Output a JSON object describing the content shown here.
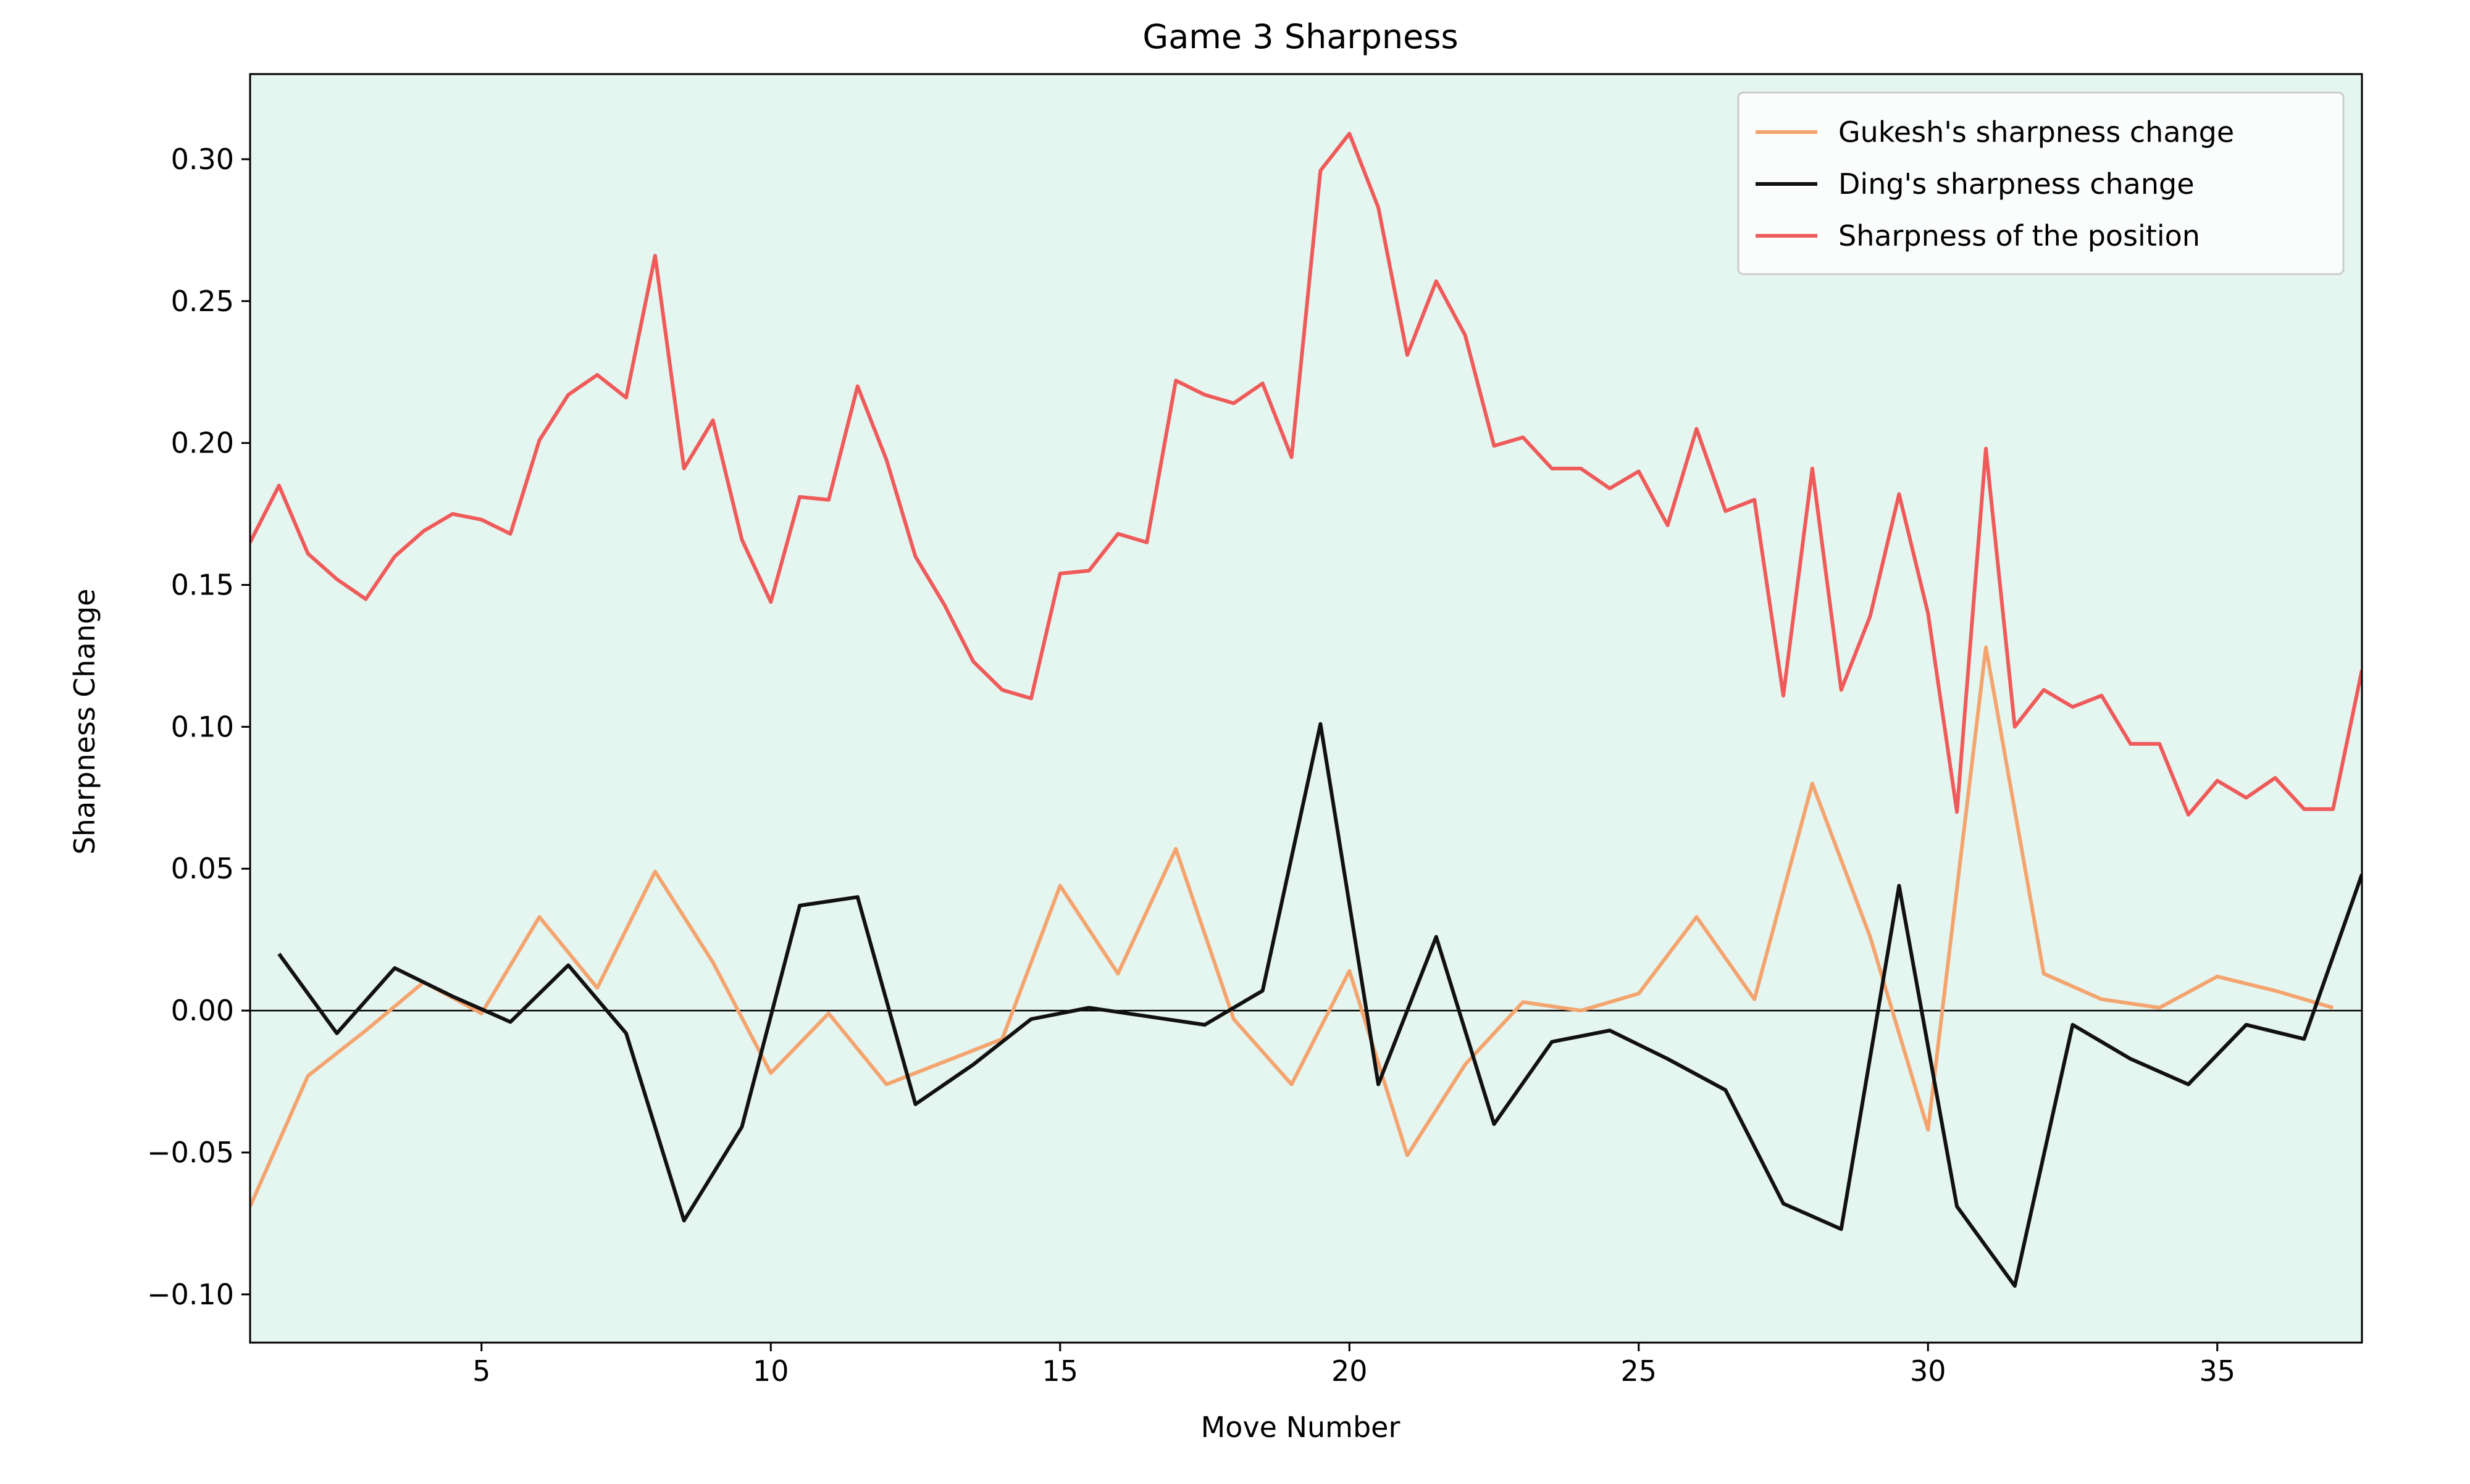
{
  "chart_data": {
    "type": "line",
    "title": "Game 3 Sharpness",
    "xlabel": "Move Number",
    "ylabel": "Sharpness Change",
    "xlim": [
      1,
      37.5
    ],
    "ylim": [
      -0.117,
      0.33
    ],
    "x_ticks": [
      5,
      10,
      15,
      20,
      25,
      30,
      35
    ],
    "y_ticks": [
      -0.1,
      -0.05,
      0.0,
      0.05,
      0.1,
      0.15,
      0.2,
      0.25,
      0.3
    ],
    "x_tick_labels": [
      "5",
      "10",
      "15",
      "20",
      "25",
      "30",
      "35"
    ],
    "y_tick_labels": [
      "−0.10",
      "−0.05",
      "0.00",
      "0.05",
      "0.10",
      "0.15",
      "0.20",
      "0.25",
      "0.30"
    ],
    "grid": false,
    "background_color": "#e5f5ef",
    "zero_line": true,
    "legend_position": "upper right",
    "series": [
      {
        "name": "Gukesh's sharpness change",
        "color": "#f4a46e",
        "x": [
          1,
          2,
          3,
          4,
          5,
          6,
          7,
          8,
          9,
          10,
          11,
          12,
          13,
          14,
          15,
          16,
          17,
          18,
          19,
          20,
          21,
          22,
          23,
          24,
          25,
          26,
          27,
          28,
          29,
          30,
          31,
          32,
          33,
          34,
          35,
          36,
          37
        ],
        "y": [
          -0.069,
          -0.023,
          -0.007,
          0.01,
          -0.001,
          0.033,
          0.008,
          0.049,
          0.017,
          -0.022,
          -0.001,
          -0.026,
          -0.018,
          -0.01,
          0.044,
          0.013,
          0.057,
          -0.003,
          -0.026,
          0.014,
          -0.051,
          -0.019,
          0.003,
          0.0,
          0.006,
          0.033,
          0.004,
          0.08,
          0.026,
          -0.042,
          0.128,
          0.013,
          0.004,
          0.001,
          0.012,
          0.007,
          0.001
        ]
      },
      {
        "name": "Ding's sharpness change",
        "color": "#111111",
        "x": [
          1.5,
          2.5,
          3.5,
          4.5,
          5.5,
          6.5,
          7.5,
          8.5,
          9.5,
          10.5,
          11.5,
          12.5,
          13.5,
          14.5,
          15.5,
          16.5,
          17.5,
          18.5,
          19.5,
          20.5,
          21.5,
          22.5,
          23.5,
          24.5,
          25.5,
          26.5,
          27.5,
          28.5,
          29.5,
          30.5,
          31.5,
          32.5,
          33.5,
          34.5,
          35.5,
          36.5,
          37.5
        ],
        "y": [
          0.02,
          -0.008,
          0.015,
          0.005,
          -0.004,
          0.016,
          -0.008,
          -0.074,
          -0.041,
          0.037,
          0.04,
          -0.033,
          -0.019,
          -0.003,
          0.001,
          -0.002,
          -0.005,
          0.007,
          0.101,
          -0.026,
          0.026,
          -0.04,
          -0.011,
          -0.007,
          -0.017,
          -0.028,
          -0.068,
          -0.077,
          0.044,
          -0.069,
          -0.097,
          -0.005,
          -0.017,
          -0.026,
          -0.005,
          -0.01,
          0.048
        ]
      },
      {
        "name": "Sharpness of the position",
        "color": "#ef5a5a",
        "x": [
          1,
          1.5,
          2,
          2.5,
          3,
          3.5,
          4,
          4.5,
          5,
          5.5,
          6,
          6.5,
          7,
          7.5,
          8,
          8.5,
          9,
          9.5,
          10,
          10.5,
          11,
          11.5,
          12,
          12.5,
          13,
          13.5,
          14,
          14.5,
          15,
          15.5,
          16,
          16.5,
          17,
          17.5,
          18,
          18.5,
          19,
          19.5,
          20,
          20.5,
          21,
          21.5,
          22,
          22.5,
          23,
          23.5,
          24,
          24.5,
          25,
          25.5,
          26,
          26.5,
          27,
          27.5,
          28,
          28.5,
          29,
          29.5,
          30,
          30.5,
          31,
          31.5,
          32,
          32.5,
          33,
          33.5,
          34,
          34.5,
          35,
          35.5,
          36,
          36.5,
          37,
          37.5
        ],
        "y": [
          0.165,
          0.185,
          0.161,
          0.152,
          0.145,
          0.16,
          0.169,
          0.175,
          0.173,
          0.168,
          0.201,
          0.217,
          0.224,
          0.216,
          0.266,
          0.191,
          0.208,
          0.166,
          0.144,
          0.181,
          0.18,
          0.22,
          0.194,
          0.16,
          0.143,
          0.123,
          0.113,
          0.11,
          0.154,
          0.155,
          0.168,
          0.165,
          0.222,
          0.217,
          0.214,
          0.221,
          0.195,
          0.296,
          0.309,
          0.283,
          0.231,
          0.257,
          0.238,
          0.199,
          0.202,
          0.191,
          0.191,
          0.184,
          0.19,
          0.171,
          0.205,
          0.176,
          0.18,
          0.111,
          0.191,
          0.113,
          0.139,
          0.182,
          0.14,
          0.07,
          0.198,
          0.1,
          0.113,
          0.107,
          0.111,
          0.094,
          0.094,
          0.069,
          0.081,
          0.075,
          0.082,
          0.071,
          0.071,
          0.12
        ]
      }
    ]
  }
}
